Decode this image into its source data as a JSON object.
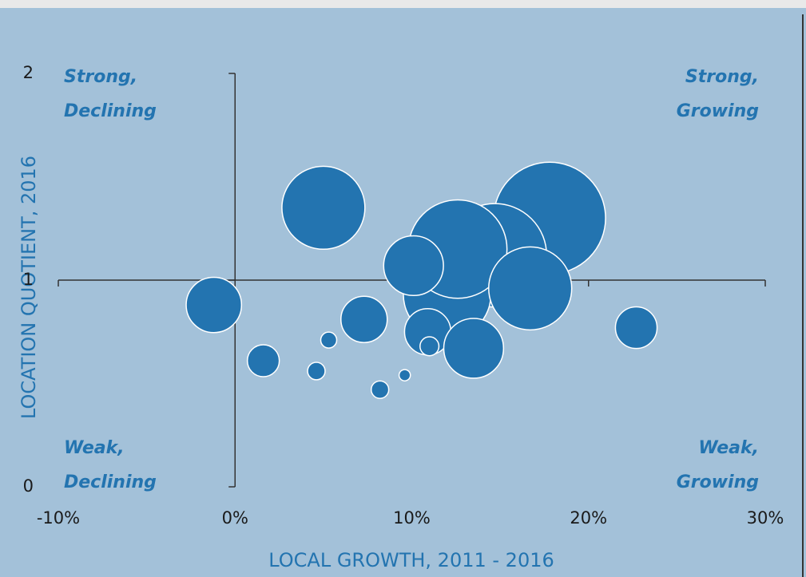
{
  "chart_data": {
    "type": "bubble",
    "x_label": "LOCAL GROWTH, 2011 - 2016",
    "y_label": "LOCATION QUOTIENT, 2016",
    "color": "#2374b0",
    "x": [
      5.0,
      17.8,
      14.7,
      12.0,
      12.6,
      10.1,
      16.7,
      -1.2,
      7.3,
      10.9,
      13.5,
      22.7,
      11.0,
      5.3,
      1.6,
      4.6,
      9.6,
      8.2
    ],
    "values": [
      1.35,
      1.3,
      1.12,
      0.93,
      1.15,
      1.07,
      0.96,
      0.88,
      0.81,
      0.75,
      0.67,
      0.77,
      0.68,
      0.71,
      0.61,
      0.56,
      0.54,
      0.47
    ],
    "sizes": [
      27,
      49,
      42,
      30,
      38,
      14,
      27,
      12,
      8.4,
      8.4,
      14,
      6.8,
      1.4,
      1,
      4,
      1.2,
      0.5,
      1.2
    ],
    "xlim": [
      -10,
      30
    ],
    "ylim": [
      0,
      2
    ],
    "xticks": [
      {
        "value": -10,
        "label": "-10%"
      },
      {
        "value": 0,
        "label": "0%"
      },
      {
        "value": 10,
        "label": "10%"
      },
      {
        "value": 20,
        "label": "20%"
      },
      {
        "value": 30,
        "label": "30%"
      }
    ],
    "yticks": [
      0,
      1,
      2
    ],
    "quadrant_labels": {
      "top_left": [
        "Strong,",
        "Declining"
      ],
      "top_right": [
        "Strong,",
        "Growing"
      ],
      "bottom_left": [
        "Weak,",
        "Declining"
      ],
      "bottom_right": [
        "Weak,",
        "Growing"
      ]
    }
  }
}
